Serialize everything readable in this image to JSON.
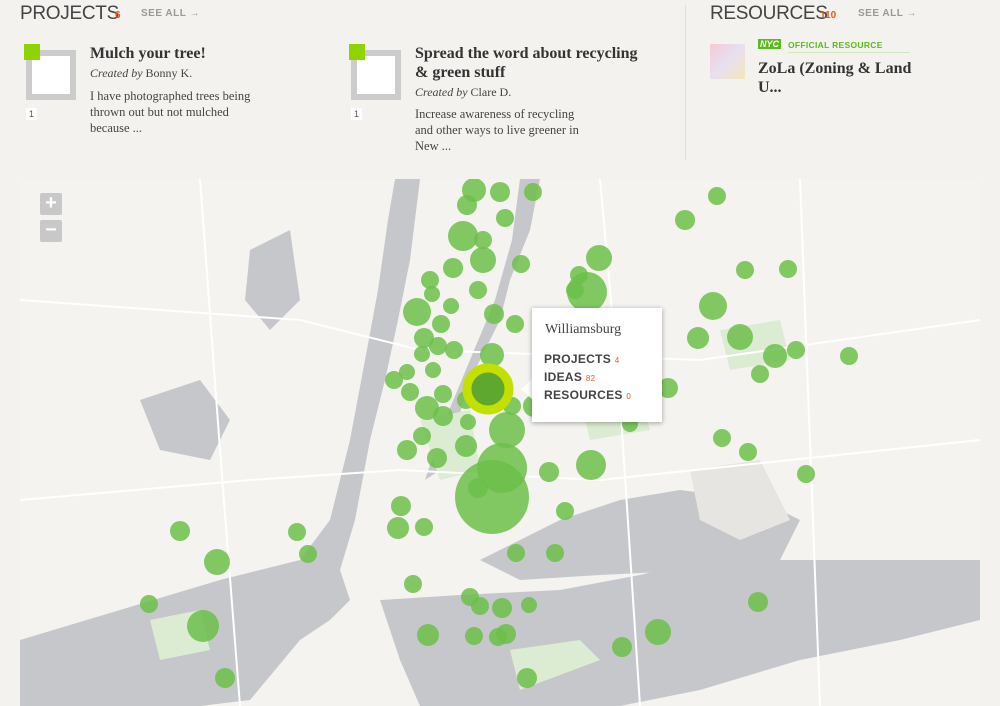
{
  "projects": {
    "heading": "PROJECTS",
    "count": "6",
    "see_all": "SEE ALL →",
    "items": [
      {
        "title": "Mulch your tree!",
        "created_by": "Created by",
        "author": "Bonny K.",
        "description": "I have photographed trees being thrown out but not mulched because ...",
        "members": "1"
      },
      {
        "title": "Spread the word about recycling & green stuff",
        "created_by": "Created by",
        "author": "Clare D.",
        "description": "Increase awareness of recycling and other ways to live greener in New ...",
        "members": "1"
      }
    ]
  },
  "resources": {
    "heading": "RESOURCES",
    "count": "110",
    "see_all": "SEE ALL →",
    "items": [
      {
        "badge": "NYC",
        "label": "OFFICIAL RESOURCE",
        "title": "ZoLa (Zoning & Land U..."
      }
    ]
  },
  "map": {
    "zoom_in": "+",
    "zoom_out": "−",
    "tooltip": {
      "title": "Williamsburg",
      "rows": [
        {
          "label": "PROJECTS",
          "count": "4"
        },
        {
          "label": "IDEAS",
          "count": "82"
        },
        {
          "label": "RESOURCES",
          "count": "0"
        }
      ]
    }
  }
}
